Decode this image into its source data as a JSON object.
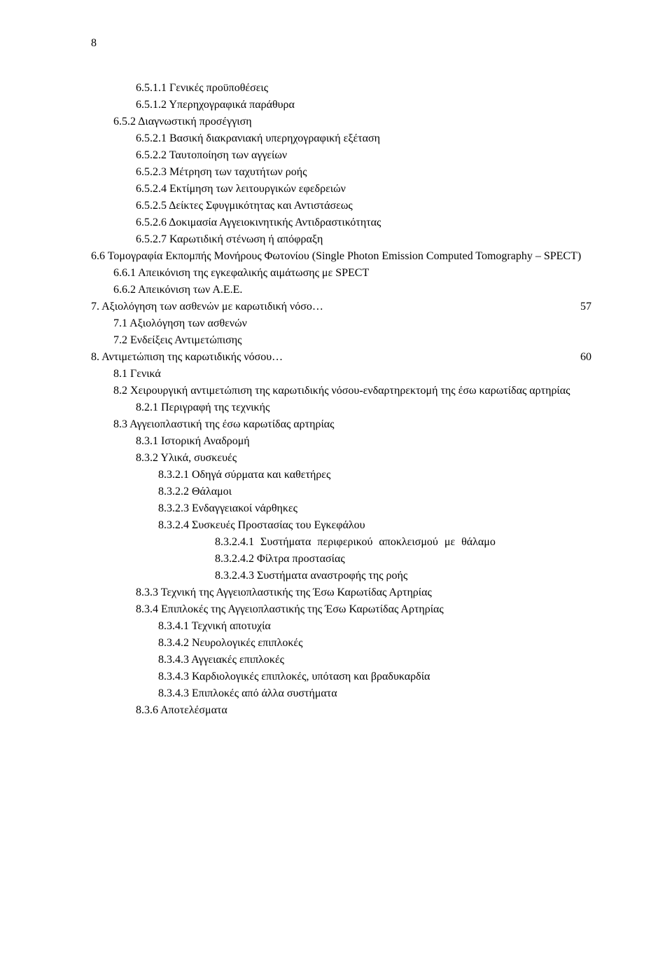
{
  "page_number": "8",
  "lines": [
    {
      "text": "6.5.1.1 Γενικές προϋποθέσεις",
      "indent": 2
    },
    {
      "text": "6.5.1.2 Υπερηχογραφικά παράθυρα",
      "indent": 2
    },
    {
      "text": "6.5.2 Διαγνωστική προσέγγιση",
      "indent": 1
    },
    {
      "text": "6.5.2.1 Βασική διακρανιακή υπερηχογραφική εξέταση",
      "indent": 2
    },
    {
      "text": "6.5.2.2 Ταυτοποίηση των αγγείων",
      "indent": 2
    },
    {
      "text": "6.5.2.3 Μέτρηση των ταχυτήτων ροής",
      "indent": 2
    },
    {
      "text": "6.5.2.4 Εκτίμηση των λειτουργικών εφεδρειών",
      "indent": 2
    },
    {
      "text": "6.5.2.5 Δείκτες Σφυγμικότητας και Αντιστάσεως",
      "indent": 2
    },
    {
      "text": "6.5.2.6 Δοκιμασία Αγγειοκινητικής Αντιδραστικότητας",
      "indent": 2
    },
    {
      "text": "6.5.2.7 Καρωτιδική στένωση ή απόφραξη",
      "indent": 2
    },
    {
      "text": "6.6 Τομογραφία Εκπομπής Μονήρους Φωτονίου (Single Photon Emission Computed  Tomography – SPECT)",
      "indent": 0,
      "justified": true
    },
    {
      "text": "6.6.1 Απεικόνιση της εγκεφαλικής αιμάτωσης με SPECT",
      "indent": 1
    },
    {
      "text": "6.6.2 Απεικόνιση των Α.Ε.Ε.",
      "indent": 1
    }
  ],
  "section7": {
    "title": "7. Αξιολόγηση των ασθενών με καρωτιδική νόσο",
    "page_ref": "57",
    "subs": [
      {
        "text": "7.1 Αξιολόγηση των ασθενών",
        "indent": 0
      },
      {
        "text": "7.2 Ενδείξεις Αντιμετώπισης",
        "indent": 0
      }
    ]
  },
  "section8": {
    "title": "8. Αντιμετώπιση της καρωτιδικής νόσου",
    "page_ref": "60",
    "subs": [
      {
        "text": "8.1 Γενικά",
        "indent": 0
      },
      {
        "text": "8.2 Χειρουργική αντιμετώπιση της καρωτιδικής νόσου-ενδαρτηρεκτομή της έσω καρωτίδας αρτηρίας",
        "indent": 0,
        "justified": true
      },
      {
        "text": "8.2.1 Περιγραφή της τεχνικής",
        "indent": 1
      },
      {
        "text": "8.3 Αγγειοπλαστική της έσω καρωτίδας αρτηρίας",
        "indent": 0
      },
      {
        "text": "8.3.1 Ιστορική Αναδρομή",
        "indent": 1
      },
      {
        "text": "8.3.2 Υλικά, συσκευές",
        "indent": 1
      },
      {
        "text": "8.3.2.1 Οδηγά σύρματα και καθετήρες",
        "indent": 2
      },
      {
        "text": "8.3.2.2 Θάλαμοι",
        "indent": 2
      },
      {
        "text": "8.3.2.3 Ενδαγγειακοί νάρθηκες",
        "indent": 2
      },
      {
        "text": "8.3.2.4 Συσκευές Προστασίας του Εγκεφάλου",
        "indent": 2
      },
      {
        "text": "8.3.2.4.1 Συστήματα περιφερικού αποκλεισμού με θάλαμο",
        "indent": 3,
        "justified": true,
        "wide": true
      },
      {
        "text": "8.3.2.4.2 Φίλτρα προστασίας",
        "indent": 3
      },
      {
        "text": "8.3.2.4.3 Συστήματα αναστροφής της ροής",
        "indent": 3
      },
      {
        "text": "8.3.3 Τεχνική της Αγγειοπλαστικής της Έσω Καρωτίδας Αρτηρίας",
        "indent": 1
      },
      {
        "text": "8.3.4 Επιπλοκές της Αγγειοπλαστικής της Έσω Καρωτίδας Αρτηρίας",
        "indent": 1
      },
      {
        "text": "8.3.4.1 Τεχνική αποτυχία",
        "indent": 2
      },
      {
        "text": "8.3.4.2 Νευρολογικές επιπλοκές",
        "indent": 2
      },
      {
        "text": "8.3.4.3 Αγγειακές επιπλοκές",
        "indent": 2
      },
      {
        "text": "8.3.4.3 Καρδιολογικές επιπλοκές, υπόταση και βραδυκαρδία",
        "indent": 2
      },
      {
        "text": "8.3.4.3 Επιπλοκές από άλλα συστήματα",
        "indent": 2
      },
      {
        "text": "8.3.6 Αποτελέσματα",
        "indent": 1
      }
    ]
  }
}
